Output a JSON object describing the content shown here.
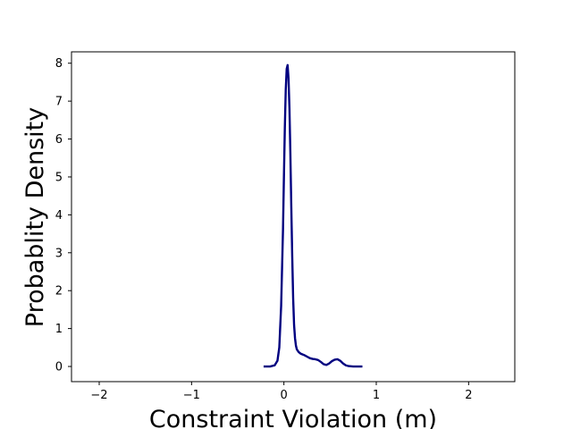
{
  "chart_data": {
    "type": "line",
    "title": "",
    "xlabel": "Constraint Violation (m)",
    "ylabel": "Probablity Density",
    "xlim": [
      -2.3,
      2.5
    ],
    "ylim": [
      -0.4,
      8.3
    ],
    "x_ticks": [
      -2,
      -1,
      0,
      1,
      2
    ],
    "x_tick_labels": [
      "−2",
      "−1",
      "0",
      "1",
      "2"
    ],
    "y_ticks": [
      0,
      1,
      2,
      3,
      4,
      5,
      6,
      7,
      8
    ],
    "y_tick_labels": [
      "0",
      "1",
      "2",
      "3",
      "4",
      "5",
      "6",
      "7",
      "8"
    ],
    "grid": false,
    "legend": "none",
    "series": [
      {
        "color": "#000080",
        "x": [
          -0.22,
          -0.15,
          -0.1,
          -0.07,
          -0.05,
          -0.03,
          -0.01,
          0.0,
          0.01,
          0.02,
          0.03,
          0.04,
          0.05,
          0.06,
          0.07,
          0.08,
          0.09,
          0.1,
          0.11,
          0.12,
          0.13,
          0.14,
          0.16,
          0.18,
          0.2,
          0.22,
          0.25,
          0.28,
          0.31,
          0.34,
          0.37,
          0.4,
          0.43,
          0.46,
          0.49,
          0.52,
          0.55,
          0.58,
          0.61,
          0.64,
          0.67,
          0.7,
          0.75,
          0.8,
          0.85
        ],
        "y": [
          0.0,
          0.0,
          0.03,
          0.15,
          0.5,
          1.6,
          3.6,
          5.0,
          6.3,
          7.3,
          7.85,
          7.95,
          7.6,
          6.8,
          5.6,
          4.2,
          2.9,
          1.8,
          1.1,
          0.75,
          0.55,
          0.45,
          0.38,
          0.34,
          0.32,
          0.3,
          0.26,
          0.22,
          0.2,
          0.19,
          0.17,
          0.12,
          0.06,
          0.04,
          0.08,
          0.14,
          0.18,
          0.19,
          0.15,
          0.08,
          0.03,
          0.01,
          0.0,
          0.0,
          0.0
        ]
      }
    ]
  }
}
